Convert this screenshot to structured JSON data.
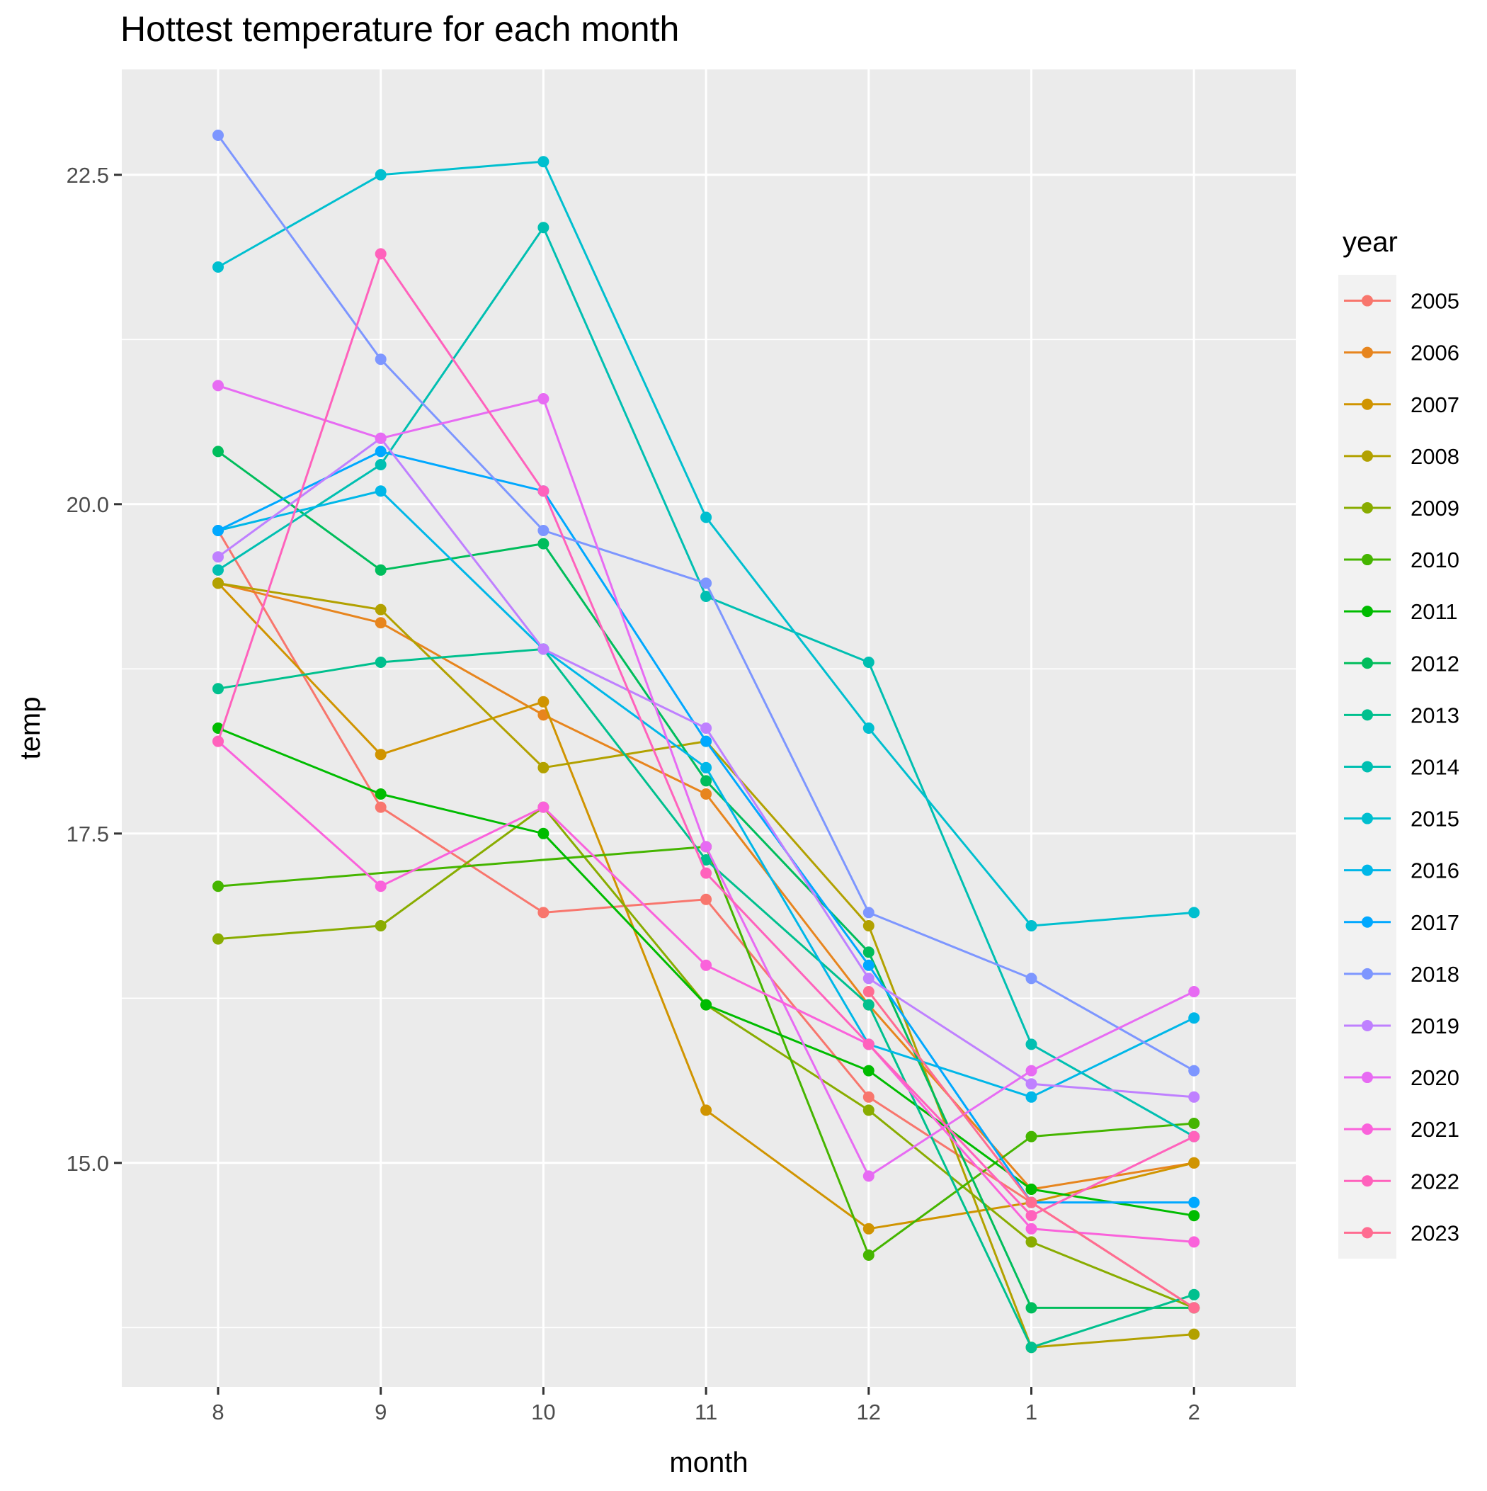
{
  "chart_data": {
    "type": "line",
    "title": "Hottest temperature for each month",
    "xlabel": "month",
    "ylabel": "temp",
    "categories": [
      "8",
      "9",
      "10",
      "11",
      "12",
      "1",
      "2"
    ],
    "yticks": [
      "15.0",
      "17.5",
      "20.0",
      "22.5"
    ],
    "ytick_values": [
      15.0,
      17.5,
      20.0,
      22.5
    ],
    "ylim": [
      13.3,
      23.3
    ],
    "legend": {
      "title": "year",
      "position": "right"
    },
    "grid": true,
    "series": [
      {
        "name": "2005",
        "color": "#F8766D",
        "values": [
          19.8,
          17.7,
          16.9,
          17.0,
          15.5,
          14.7,
          13.9
        ]
      },
      {
        "name": "2006",
        "color": "#E7851E",
        "values": [
          19.4,
          19.1,
          18.4,
          17.8,
          16.2,
          14.8,
          15.0
        ]
      },
      {
        "name": "2007",
        "color": "#D09400",
        "values": [
          19.4,
          18.1,
          18.5,
          15.4,
          14.5,
          14.7,
          15.0
        ]
      },
      {
        "name": "2008",
        "color": "#B2A100",
        "values": [
          19.4,
          19.2,
          18.0,
          18.2,
          16.8,
          13.6,
          13.7
        ]
      },
      {
        "name": "2009",
        "color": "#89AC00",
        "values": [
          16.7,
          16.8,
          17.7,
          16.2,
          15.4,
          14.4,
          13.9
        ]
      },
      {
        "name": "2010",
        "color": "#45B500",
        "values": [
          17.1,
          null,
          null,
          17.4,
          14.3,
          15.2,
          15.3
        ]
      },
      {
        "name": "2011",
        "color": "#00BC00",
        "values": [
          18.3,
          17.8,
          17.5,
          16.2,
          15.7,
          14.8,
          14.6
        ]
      },
      {
        "name": "2012",
        "color": "#00BD5C",
        "values": [
          20.4,
          19.5,
          19.7,
          17.9,
          16.6,
          13.9,
          13.9
        ]
      },
      {
        "name": "2013",
        "color": "#00C08E",
        "values": [
          18.6,
          18.8,
          18.9,
          17.3,
          16.2,
          13.6,
          14.0
        ]
      },
      {
        "name": "2014",
        "color": "#00BFB1",
        "values": [
          19.5,
          20.3,
          22.1,
          19.3,
          18.8,
          15.9,
          15.2
        ]
      },
      {
        "name": "2015",
        "color": "#00BFCF",
        "values": [
          21.8,
          22.5,
          22.6,
          19.9,
          18.3,
          16.8,
          16.9
        ]
      },
      {
        "name": "2016",
        "color": "#00B7E8",
        "values": [
          19.8,
          20.1,
          18.9,
          18.0,
          15.9,
          15.5,
          16.1
        ]
      },
      {
        "name": "2017",
        "color": "#00A8FF",
        "values": [
          19.8,
          20.4,
          20.1,
          18.2,
          16.5,
          14.7,
          14.7
        ]
      },
      {
        "name": "2018",
        "color": "#7D96FF",
        "values": [
          22.8,
          21.1,
          19.8,
          19.4,
          16.9,
          16.4,
          15.7
        ]
      },
      {
        "name": "2019",
        "color": "#BF80FF",
        "values": [
          19.6,
          20.5,
          18.9,
          18.3,
          16.4,
          15.6,
          15.5
        ]
      },
      {
        "name": "2020",
        "color": "#E76BF3",
        "values": [
          20.9,
          20.5,
          20.8,
          17.4,
          14.9,
          15.7,
          16.3
        ]
      },
      {
        "name": "2021",
        "color": "#FA62DB",
        "values": [
          18.2,
          17.1,
          17.7,
          16.5,
          15.9,
          14.5,
          14.4
        ]
      },
      {
        "name": "2022",
        "color": "#FF62BC",
        "values": [
          18.2,
          21.9,
          20.1,
          17.2,
          15.9,
          14.6,
          15.2
        ]
      },
      {
        "name": "2023",
        "color": "#FF6C91",
        "values": [
          null,
          null,
          null,
          null,
          16.3,
          14.7,
          13.9
        ]
      }
    ]
  }
}
